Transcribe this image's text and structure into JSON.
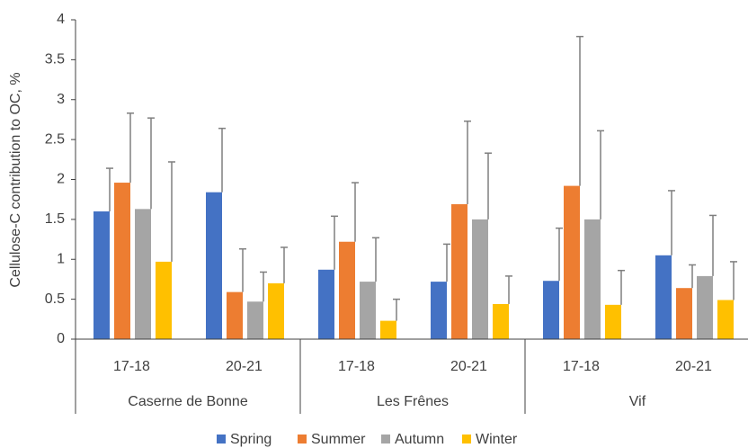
{
  "chart_data": {
    "type": "bar",
    "ylabel": "Cellulose-C contribution to OC, %",
    "categories": [
      "17-18",
      "20-21",
      "17-18",
      "20-21",
      "17-18",
      "20-21"
    ],
    "category_groups": [
      "Caserne de Bonne",
      "Les Frênes",
      "Vif"
    ],
    "series": [
      {
        "name": "Spring",
        "color": "#4472c4",
        "values": [
          1.6,
          1.84,
          0.87,
          0.72,
          0.73,
          1.05
        ],
        "errors": [
          0.54,
          0.8,
          0.67,
          0.47,
          0.66,
          0.81
        ]
      },
      {
        "name": "Summer",
        "color": "#ed7d31",
        "values": [
          1.96,
          0.59,
          1.22,
          1.69,
          1.92,
          0.64
        ],
        "errors": [
          0.87,
          0.54,
          0.74,
          1.04,
          1.87,
          0.29
        ]
      },
      {
        "name": "Autumn",
        "color": "#a5a5a5",
        "values": [
          1.63,
          0.47,
          0.72,
          1.5,
          1.5,
          0.79
        ],
        "errors": [
          1.14,
          0.37,
          0.55,
          0.83,
          1.11,
          0.76
        ]
      },
      {
        "name": "Winter",
        "color": "#ffc000",
        "values": [
          0.97,
          0.7,
          0.23,
          0.44,
          0.43,
          0.49
        ],
        "errors": [
          1.25,
          0.45,
          0.27,
          0.35,
          0.43,
          0.48
        ]
      }
    ],
    "ylim": [
      0,
      4
    ],
    "yticks": [
      0,
      0.5,
      1,
      1.5,
      2,
      2.5,
      3,
      3.5,
      4
    ],
    "grid": false,
    "legend": "bottom"
  }
}
